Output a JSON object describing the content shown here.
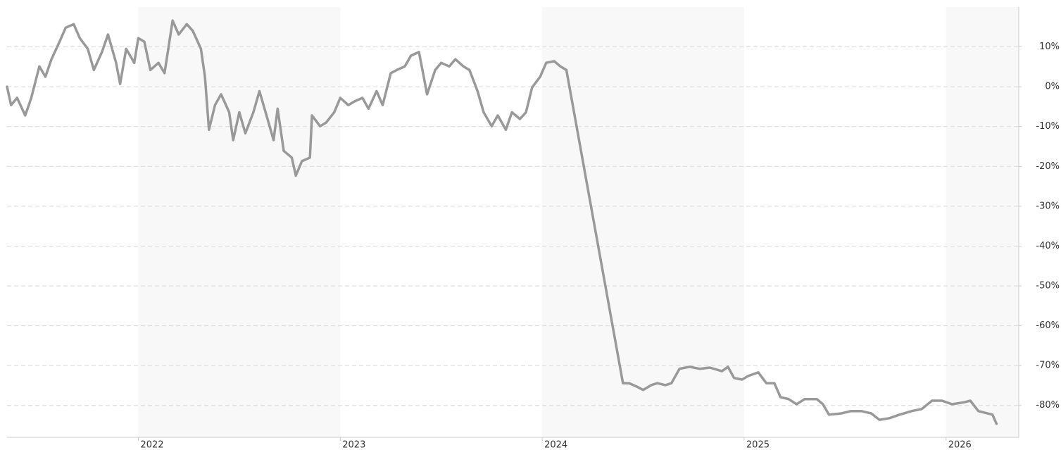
{
  "chart_data": {
    "type": "line",
    "x": [
      2021.35,
      2021.37,
      2021.4,
      2021.44,
      2021.47,
      2021.51,
      2021.54,
      2021.57,
      2021.61,
      2021.64,
      2021.68,
      2021.71,
      2021.75,
      2021.78,
      2021.82,
      2021.85,
      2021.89,
      2021.91,
      2021.94,
      2021.98,
      2022.0,
      2022.03,
      2022.06,
      2022.1,
      2022.13,
      2022.17,
      2022.2,
      2022.24,
      2022.27,
      2022.31,
      2022.33,
      2022.35,
      2022.38,
      2022.41,
      2022.45,
      2022.47,
      2022.5,
      2022.53,
      2022.57,
      2022.6,
      2022.64,
      2022.67,
      2022.69,
      2022.72,
      2022.76,
      2022.78,
      2022.81,
      2022.85,
      2022.86,
      2022.9,
      2022.93,
      2022.97,
      2023.0,
      2023.04,
      2023.07,
      2023.11,
      2023.14,
      2023.18,
      2023.21,
      2023.25,
      2023.28,
      2023.32,
      2023.35,
      2023.39,
      2023.41,
      2023.43,
      2023.47,
      2023.5,
      2023.54,
      2023.57,
      2023.61,
      2023.64,
      2023.68,
      2023.71,
      2023.75,
      2023.78,
      2023.82,
      2023.85,
      2023.89,
      2023.92,
      2023.95,
      2023.99,
      2024.02,
      2024.06,
      2024.09,
      2024.12,
      2024.4,
      2024.43,
      2024.47,
      2024.5,
      2024.54,
      2024.57,
      2024.61,
      2024.64,
      2024.68,
      2024.73,
      2024.78,
      2024.83,
      2024.89,
      2024.92,
      2024.95,
      2024.99,
      2025.02,
      2025.07,
      2025.11,
      2025.15,
      2025.18,
      2025.22,
      2025.26,
      2025.3,
      2025.36,
      2025.39,
      2025.42,
      2025.48,
      2025.53,
      2025.58,
      2025.63,
      2025.67,
      2025.72,
      2025.77,
      2025.83,
      2025.88,
      2025.93,
      2025.98,
      2026.03,
      2026.09,
      2026.12,
      2026.16,
      2026.19,
      2026.23,
      2026.25
    ],
    "values": [
      0,
      -4.6,
      -2.8,
      -7.2,
      -2.8,
      5.1,
      2.5,
      6.9,
      11.3,
      14.8,
      15.7,
      12.2,
      9.5,
      4.2,
      8.7,
      13.1,
      6.0,
      0.7,
      9.5,
      6.0,
      12.2,
      11.3,
      4.2,
      6.0,
      3.4,
      16.6,
      13.1,
      15.7,
      14.0,
      9.5,
      2.5,
      -10.8,
      -4.6,
      -1.9,
      -6.4,
      -13.4,
      -6.4,
      -11.7,
      -6.4,
      -1.1,
      -8.1,
      -13.4,
      -5.5,
      -16.1,
      -17.8,
      -22.3,
      -18.7,
      -17.8,
      -7.2,
      -9.9,
      -9.0,
      -6.4,
      -2.8,
      -4.6,
      -3.7,
      -2.8,
      -5.5,
      -1.1,
      -4.6,
      3.4,
      4.2,
      5.1,
      7.8,
      8.7,
      3.4,
      -1.9,
      4.2,
      6.0,
      5.1,
      6.9,
      5.1,
      4.2,
      -1.1,
      -6.4,
      -9.9,
      -7.2,
      -10.8,
      -6.4,
      -8.1,
      -6.4,
      -0.2,
      2.5,
      6.0,
      6.4,
      5.1,
      4.2,
      -74.4,
      -74.4,
      -75.3,
      -76.1,
      -74.9,
      -74.4,
      -74.9,
      -74.4,
      -70.8,
      -70.3,
      -70.8,
      -70.5,
      -71.4,
      -70.3,
      -73.1,
      -73.5,
      -72.6,
      -71.7,
      -74.4,
      -74.4,
      -77.9,
      -78.4,
      -79.7,
      -78.4,
      -78.4,
      -79.7,
      -82.3,
      -82.0,
      -81.4,
      -81.4,
      -82.0,
      -83.6,
      -83.2,
      -82.3,
      -81.4,
      -80.9,
      -78.8,
      -78.8,
      -79.7,
      -79.2,
      -78.8,
      -81.4,
      -81.8,
      -82.3,
      -84.6
    ],
    "color": "#999999",
    "xlim": [
      2021.35,
      2026.36
    ],
    "xticks": [
      2022,
      2023,
      2024,
      2025,
      2026
    ],
    "ylim": [
      -88,
      20
    ],
    "yticks": [
      {
        "value": 10,
        "label": "10%"
      },
      {
        "value": 0,
        "label": "0%"
      },
      {
        "value": -10,
        "label": "-10%"
      },
      {
        "value": -20,
        "label": "-20%"
      },
      {
        "value": -30,
        "label": "-30%"
      },
      {
        "value": -40,
        "label": "-40%"
      },
      {
        "value": -50,
        "label": "-50%"
      },
      {
        "value": -60,
        "label": "-60%"
      },
      {
        "value": -70,
        "label": "-70%"
      },
      {
        "value": -80,
        "label": "-80%"
      }
    ],
    "grid": true
  }
}
